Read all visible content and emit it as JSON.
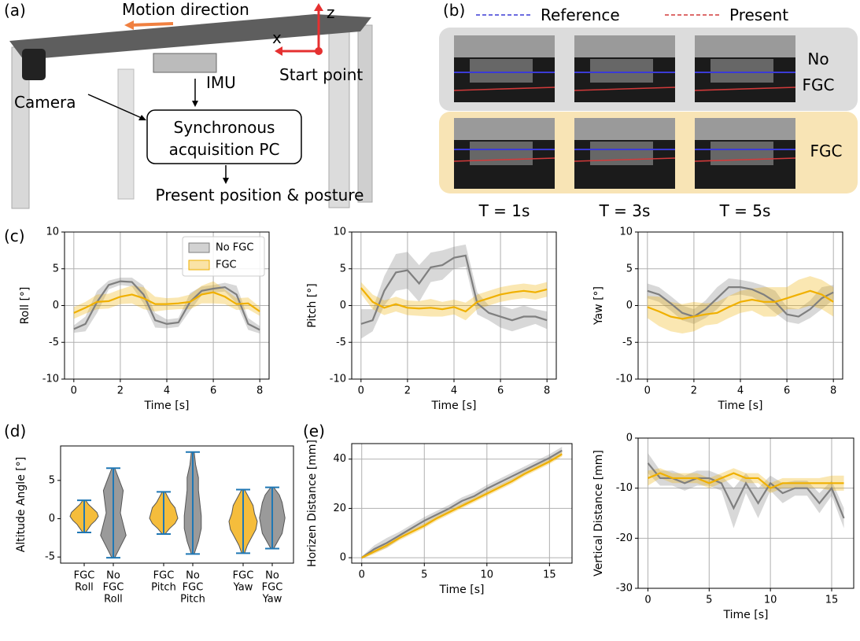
{
  "panel_a": {
    "label": "(a)",
    "motion_direction": "Motion direction",
    "z": "z",
    "x": "x",
    "start_point": "Start point",
    "imu": "IMU",
    "camera": "Camera",
    "pc_lines": [
      "Synchronous",
      "acquisition PC"
    ],
    "output": "Present position & posture"
  },
  "panel_b": {
    "label": "(b)",
    "legend": [
      {
        "name": "Reference",
        "color": "#3b3bd6"
      },
      {
        "name": "Present",
        "color": "#d23a3a"
      }
    ],
    "rows": [
      [
        "No",
        "FGC"
      ],
      [
        "FGC"
      ]
    ],
    "times": [
      "T = 1s",
      "T = 3s",
      "T = 5s"
    ]
  },
  "panel_labels": {
    "c": "(c)",
    "d": "(d)",
    "e": "(e)"
  },
  "chart_data": [
    {
      "type": "line",
      "ylabel": "Roll [°]",
      "xlabel": "Time [s]",
      "xlim": [
        -0.4,
        8.4
      ],
      "xticks": [
        0,
        2,
        4,
        6,
        8
      ],
      "ylim": [
        -10,
        10
      ],
      "yticks": [
        -10,
        -5,
        0,
        5,
        10
      ],
      "grid": true,
      "legend": "upper right",
      "x": [
        0,
        0.5,
        1,
        1.5,
        2,
        2.5,
        3,
        3.5,
        4,
        4.5,
        5,
        5.5,
        6,
        6.5,
        7,
        7.5,
        8
      ],
      "series": [
        {
          "name": "No FGC",
          "color": "#7f7f7f",
          "values": [
            -3.2,
            -2.5,
            0.5,
            2.8,
            3.3,
            3.2,
            1.5,
            -2.0,
            -2.5,
            -2.3,
            0.5,
            2.0,
            2.3,
            2.5,
            1.5,
            -2.5,
            -3.3
          ],
          "std": [
            0.5,
            1,
            1.5,
            0.6,
            0.5,
            0.6,
            1.2,
            1,
            0.6,
            0.6,
            1.2,
            0.6,
            0.5,
            0.6,
            1.2,
            0.8,
            0.5
          ]
        },
        {
          "name": "FGC",
          "color": "#f0b000",
          "values": [
            -1.0,
            -0.3,
            0.5,
            0.6,
            1.2,
            1.5,
            1.0,
            0.2,
            0.2,
            0.3,
            0.5,
            1.5,
            1.8,
            1.2,
            0.2,
            0.3,
            -0.8
          ],
          "std": [
            0.8,
            0.8,
            1,
            1,
            1,
            1.2,
            1.5,
            1,
            0.8,
            0.8,
            1,
            1.2,
            1.5,
            1,
            0.8,
            0.8,
            0.6
          ]
        }
      ]
    },
    {
      "type": "line",
      "ylabel": "Pitch [°]",
      "xlabel": "Time [s]",
      "xlim": [
        -0.4,
        8.4
      ],
      "xticks": [
        0,
        2,
        4,
        6,
        8
      ],
      "ylim": [
        -10,
        10
      ],
      "yticks": [
        -10,
        -5,
        0,
        5,
        10
      ],
      "grid": true,
      "x": [
        0,
        0.5,
        1,
        1.5,
        2,
        2.5,
        3,
        3.5,
        4,
        4.5,
        5,
        5.5,
        6,
        6.5,
        7,
        7.5,
        8
      ],
      "series": [
        {
          "color": "#7f7f7f",
          "values": [
            -2.5,
            -2.0,
            2.0,
            4.5,
            4.8,
            3.0,
            5.2,
            5.5,
            6.5,
            6.8,
            0.3,
            -1.0,
            -1.5,
            -2.0,
            -1.5,
            -1.5,
            -2.0
          ],
          "std": [
            2,
            1.5,
            2,
            2.5,
            2.5,
            2.5,
            2,
            2,
            1.5,
            1.5,
            1.5,
            1,
            1.5,
            1.5,
            1.5,
            1,
            1.2
          ]
        },
        {
          "color": "#f0b000",
          "values": [
            2.4,
            0.5,
            -0.3,
            0.2,
            -0.3,
            -0.4,
            -0.3,
            -0.5,
            -0.2,
            -0.8,
            0.5,
            1.0,
            1.5,
            1.8,
            2.0,
            1.8,
            2.2
          ],
          "std": [
            0.8,
            1,
            1,
            1,
            1,
            1,
            1.2,
            1,
            1,
            1.2,
            1,
            1,
            1,
            1,
            1,
            1,
            1
          ]
        }
      ]
    },
    {
      "type": "line",
      "ylabel": "Yaw [°]",
      "xlabel": "Time [s]",
      "xlim": [
        -0.4,
        8.4
      ],
      "xticks": [
        0,
        2,
        4,
        6,
        8
      ],
      "ylim": [
        -10,
        10
      ],
      "yticks": [
        -10,
        -5,
        0,
        5,
        10
      ],
      "grid": true,
      "x": [
        0,
        0.5,
        1,
        1.5,
        2,
        2.5,
        3,
        3.5,
        4,
        4.5,
        5,
        5.5,
        6,
        6.5,
        7,
        7.5,
        8
      ],
      "series": [
        {
          "color": "#7f7f7f",
          "values": [
            2.0,
            1.5,
            0.3,
            -1.0,
            -1.5,
            -0.5,
            1.0,
            2.5,
            2.5,
            2.2,
            1.5,
            0.5,
            -1.2,
            -1.5,
            -0.5,
            1.0,
            1.8
          ],
          "std": [
            1,
            1,
            1,
            1,
            1,
            1.2,
            1.5,
            1.2,
            1,
            1,
            1.2,
            1.5,
            1,
            1,
            1.2,
            1.5,
            1
          ]
        },
        {
          "color": "#f0b000",
          "values": [
            -0.2,
            -0.8,
            -1.5,
            -1.8,
            -1.5,
            -1.2,
            -1.0,
            -0.2,
            0.5,
            0.8,
            0.5,
            0.5,
            1.0,
            1.5,
            2.0,
            1.5,
            0.5
          ],
          "std": [
            1.5,
            2,
            2,
            2,
            2,
            1.5,
            1.5,
            1.5,
            1.5,
            1.5,
            2,
            2,
            1.5,
            2,
            2,
            2,
            2
          ]
        }
      ]
    },
    {
      "type": "violin",
      "ylabel": "Altitude Angle [°]",
      "ylim": [
        -5.8,
        9.5
      ],
      "yticks": [
        -5,
        0,
        5
      ],
      "extrema_color": "#1f77b4",
      "categories": [
        [
          "FGC",
          "Roll"
        ],
        [
          "No",
          "FGC",
          "Roll"
        ],
        [
          "FGC",
          "Pitch"
        ],
        [
          "No",
          "FGC",
          "Pitch"
        ],
        [
          "FGC",
          "Yaw"
        ],
        [
          "No",
          "FGC",
          "Yaw"
        ]
      ],
      "violins": [
        {
          "color": "#f5bd3c",
          "min": -1.8,
          "max": 2.4,
          "density": [
            0.1,
            0.3,
            0.5,
            0.8,
            1,
            0.9,
            0.6,
            0.3,
            0.1
          ]
        },
        {
          "color": "#9a9a9a",
          "min": -5.1,
          "max": 6.6,
          "density": [
            0.1,
            0.5,
            0.9,
            0.7,
            0.5,
            0.6,
            0.7,
            0.4,
            0.1
          ]
        },
        {
          "color": "#f5bd3c",
          "min": -2.0,
          "max": 3.5,
          "density": [
            0.1,
            0.4,
            0.8,
            1,
            0.9,
            0.8,
            0.5,
            0.3,
            0.1
          ]
        },
        {
          "color": "#9a9a9a",
          "min": -4.6,
          "max": 8.7,
          "density": [
            0.1,
            0.4,
            0.6,
            0.6,
            0.5,
            0.4,
            0.4,
            0.2,
            0.1
          ]
        },
        {
          "color": "#f5bd3c",
          "min": -4.5,
          "max": 3.8,
          "density": [
            0.1,
            0.3,
            0.6,
            0.9,
            1,
            0.8,
            0.7,
            0.4,
            0.1
          ]
        },
        {
          "color": "#9a9a9a",
          "min": -3.9,
          "max": 4.1,
          "density": [
            0.1,
            0.4,
            0.7,
            0.8,
            0.9,
            0.8,
            0.7,
            0.5,
            0.1
          ]
        }
      ]
    },
    {
      "type": "line",
      "ylabel": "Horizen Distance [mm]",
      "xlabel": "Time [s]",
      "xlim": [
        -0.8,
        16.8
      ],
      "xticks": [
        0,
        5,
        10,
        15
      ],
      "ylim": [
        -2.2,
        46.3
      ],
      "yticks": [
        0,
        20,
        40
      ],
      "grid": true,
      "x": [
        0,
        1,
        2,
        3,
        4,
        5,
        6,
        7,
        8,
        9,
        10,
        11,
        12,
        13,
        14,
        15,
        16
      ],
      "series": [
        {
          "color": "#7f7f7f",
          "values": [
            0,
            3.5,
            6,
            9,
            12,
            15,
            17.5,
            20,
            23,
            25,
            28,
            30.5,
            33,
            35.5,
            38,
            40.5,
            43.5
          ],
          "std": [
            0.5,
            1.5,
            2,
            1.5,
            1.5,
            1.5,
            1.5,
            1.5,
            1.5,
            1.5,
            1.5,
            1.5,
            1.5,
            1.5,
            1.5,
            1.5,
            1.5
          ]
        },
        {
          "color": "#f0b000",
          "values": [
            0,
            2.5,
            5,
            8,
            10.5,
            13,
            16,
            18.5,
            21,
            23.5,
            26,
            28.5,
            31,
            34,
            36.5,
            39,
            42
          ],
          "std": [
            0.5,
            1,
            1,
            1,
            1,
            1,
            1,
            1,
            1,
            1,
            1,
            1,
            1,
            1,
            1,
            1,
            1
          ]
        }
      ]
    },
    {
      "type": "line",
      "ylabel": "Vertical Distance [mm]",
      "xlabel": "Time [s]",
      "xlim": [
        -0.8,
        16.8
      ],
      "xticks": [
        0,
        5,
        10,
        15
      ],
      "ylim": [
        -30,
        0
      ],
      "yticks": [
        -30,
        -20,
        -10,
        0
      ],
      "grid": true,
      "x": [
        0,
        1,
        2,
        3,
        4,
        5,
        6,
        7,
        8,
        9,
        10,
        11,
        12,
        13,
        14,
        15,
        16
      ],
      "series": [
        {
          "color": "#7f7f7f",
          "values": [
            -5,
            -8,
            -8,
            -9,
            -8,
            -8,
            -9,
            -14,
            -9,
            -13,
            -9,
            -11,
            -10,
            -10,
            -13,
            -10,
            -16
          ],
          "std": [
            2,
            1.5,
            1.5,
            1.5,
            1.5,
            1.5,
            1.5,
            4,
            2,
            3,
            1.5,
            2,
            1.5,
            1.5,
            2,
            1.5,
            2
          ]
        },
        {
          "color": "#f0b000",
          "values": [
            -8,
            -7,
            -8,
            -8,
            -8,
            -9,
            -8,
            -7,
            -8,
            -8,
            -10,
            -9,
            -9,
            -9,
            -9,
            -9,
            -9
          ],
          "std": [
            1.5,
            1,
            1,
            1,
            1,
            1,
            1,
            1,
            1,
            1,
            1,
            1,
            1,
            1,
            1,
            1.5,
            1.5
          ]
        }
      ]
    }
  ]
}
